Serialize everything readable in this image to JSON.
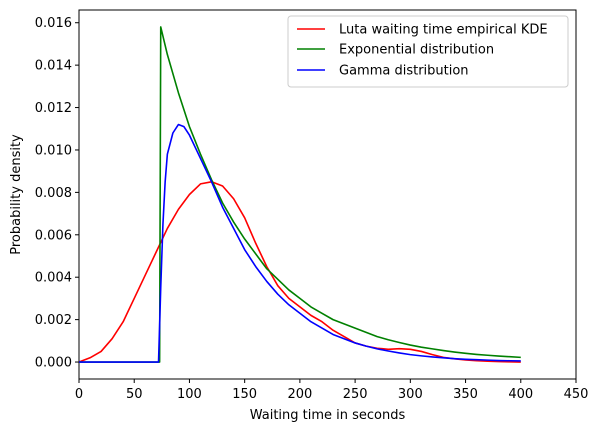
{
  "chart_data": {
    "type": "line",
    "title": "",
    "xlabel": "Waiting time in seconds",
    "ylabel": "Probability density",
    "xlim": [
      0,
      450
    ],
    "ylim": [
      -0.0008,
      0.0166
    ],
    "xticks": [
      "0",
      "50",
      "100",
      "150",
      "200",
      "250",
      "300",
      "350",
      "400",
      "450"
    ],
    "yticks": [
      "0.000",
      "0.002",
      "0.004",
      "0.006",
      "0.008",
      "0.010",
      "0.012",
      "0.014",
      "0.016"
    ],
    "grid": false,
    "legend_position": "top-right",
    "series": [
      {
        "name": "Luta waiting time empirical KDE",
        "color": "#ff0000",
        "x": [
          0,
          10,
          20,
          30,
          40,
          50,
          60,
          70,
          80,
          90,
          100,
          110,
          120,
          130,
          140,
          150,
          160,
          170,
          180,
          190,
          200,
          210,
          220,
          230,
          240,
          250,
          260,
          270,
          280,
          290,
          300,
          310,
          320,
          330,
          340,
          350,
          360,
          370,
          380,
          390,
          400
        ],
        "y": [
          0.0,
          0.0002,
          0.0005,
          0.0011,
          0.0019,
          0.003,
          0.0041,
          0.0052,
          0.0063,
          0.0072,
          0.0079,
          0.0084,
          0.0085,
          0.0083,
          0.0077,
          0.0068,
          0.0056,
          0.0045,
          0.0036,
          0.003,
          0.0026,
          0.0022,
          0.0019,
          0.0015,
          0.0012,
          0.0009,
          0.00075,
          0.00065,
          0.0006,
          0.00063,
          0.0006,
          0.0005,
          0.00035,
          0.00022,
          0.00015,
          0.0001,
          6e-05,
          4e-05,
          2e-05,
          1e-05,
          0.0
        ]
      },
      {
        "name": "Exponential distribution",
        "color": "#008000",
        "x": [
          0,
          73,
          73,
          74,
          80,
          90,
          100,
          110,
          120,
          130,
          140,
          150,
          160,
          170,
          180,
          190,
          200,
          210,
          220,
          230,
          240,
          250,
          260,
          270,
          280,
          290,
          300,
          310,
          320,
          330,
          340,
          350,
          360,
          370,
          380,
          390,
          400
        ],
        "y": [
          0.0,
          0.0,
          0.0,
          0.0158,
          0.0145,
          0.0127,
          0.0111,
          0.0098,
          0.0086,
          0.0075,
          0.0066,
          0.0058,
          0.0051,
          0.0044,
          0.0039,
          0.0034,
          0.003,
          0.0026,
          0.0023,
          0.002,
          0.0018,
          0.0016,
          0.0014,
          0.0012,
          0.00105,
          0.00092,
          0.0008,
          0.0007,
          0.00062,
          0.00054,
          0.00047,
          0.00041,
          0.00036,
          0.00032,
          0.00028,
          0.00025,
          0.00022
        ]
      },
      {
        "name": "Gamma distribution",
        "color": "#0000ff",
        "x": [
          0,
          72,
          74,
          76,
          78,
          80,
          85,
          90,
          95,
          100,
          110,
          120,
          130,
          140,
          150,
          160,
          170,
          180,
          190,
          200,
          210,
          220,
          230,
          240,
          250,
          260,
          270,
          280,
          290,
          300,
          310,
          320,
          330,
          340,
          350,
          360,
          370,
          380,
          390,
          400
        ],
        "y": [
          0.0,
          0.0,
          0.0035,
          0.0065,
          0.0085,
          0.0098,
          0.0108,
          0.0112,
          0.0111,
          0.0107,
          0.0096,
          0.0085,
          0.0073,
          0.0063,
          0.0053,
          0.0045,
          0.0038,
          0.0032,
          0.0027,
          0.0023,
          0.0019,
          0.0016,
          0.0013,
          0.0011,
          0.0009,
          0.00075,
          0.00062,
          0.00052,
          0.00043,
          0.00035,
          0.00029,
          0.00024,
          0.0002,
          0.00016,
          0.00013,
          0.00011,
          9e-05,
          7e-05,
          6e-05,
          5e-05
        ]
      }
    ]
  }
}
